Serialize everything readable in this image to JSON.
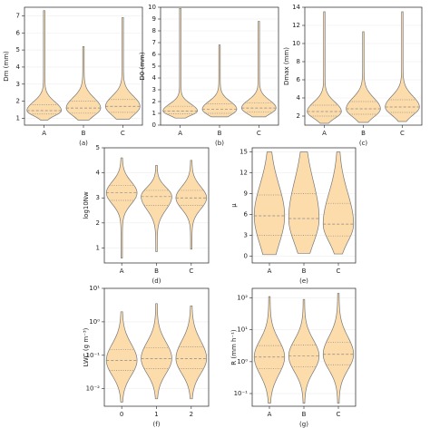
{
  "chart_data": [
    {
      "type": "violin",
      "label": "(a)",
      "ylabel": "Dm (mm)",
      "categories": [
        "A",
        "B",
        "C"
      ],
      "ylim": [
        0.6,
        7.5
      ],
      "yticks": [
        1,
        2,
        3,
        4,
        5,
        6,
        7
      ],
      "log": false,
      "grid": true,
      "color": "#fddcab",
      "violins": [
        {
          "min": 0.9,
          "q1": 1.25,
          "median": 1.45,
          "q3": 1.8,
          "max": 7.3
        },
        {
          "min": 0.9,
          "q1": 1.3,
          "median": 1.6,
          "q3": 2.0,
          "max": 5.2
        },
        {
          "min": 0.95,
          "q1": 1.35,
          "median": 1.7,
          "q3": 2.1,
          "max": 6.9
        }
      ]
    },
    {
      "type": "violin",
      "label": "(b)",
      "ylabel": "D0 (mm)",
      "categories": [
        "A",
        "B",
        "C"
      ],
      "ylim": [
        0,
        10
      ],
      "yticks": [
        0,
        1,
        2,
        3,
        4,
        5,
        6,
        7,
        8,
        9,
        10
      ],
      "log": false,
      "grid": true,
      "color": "#fddcab",
      "violins": [
        {
          "min": 0.6,
          "q1": 0.95,
          "median": 1.2,
          "q3": 1.6,
          "max": 9.9
        },
        {
          "min": 0.7,
          "q1": 1.0,
          "median": 1.35,
          "q3": 1.8,
          "max": 6.8
        },
        {
          "min": 0.7,
          "q1": 1.1,
          "median": 1.45,
          "q3": 1.9,
          "max": 8.8
        }
      ]
    },
    {
      "type": "violin",
      "label": "(c)",
      "ylabel": "Dmax (mm)",
      "categories": [
        "A",
        "B",
        "C"
      ],
      "ylim": [
        1,
        14
      ],
      "yticks": [
        2,
        4,
        6,
        8,
        10,
        12,
        14
      ],
      "log": false,
      "grid": true,
      "color": "#fddcab",
      "violins": [
        {
          "min": 1.2,
          "q1": 2.0,
          "median": 2.5,
          "q3": 3.2,
          "max": 13.5
        },
        {
          "min": 1.3,
          "q1": 2.2,
          "median": 2.8,
          "q3": 3.6,
          "max": 11.3
        },
        {
          "min": 1.4,
          "q1": 2.4,
          "median": 3.0,
          "q3": 3.8,
          "max": 13.5
        }
      ]
    },
    {
      "type": "violin",
      "label": "(d)",
      "ylabel": "log10Nw",
      "categories": [
        "A",
        "B",
        "C"
      ],
      "ylim": [
        0.4,
        5
      ],
      "yticks": [
        1,
        2,
        3,
        4,
        5
      ],
      "log": false,
      "grid": true,
      "color": "#fddcab",
      "violins": [
        {
          "min": 0.6,
          "q1": 2.9,
          "median": 3.2,
          "q3": 3.5,
          "max": 4.6
        },
        {
          "min": 0.85,
          "q1": 2.7,
          "median": 3.05,
          "q3": 3.3,
          "max": 4.3
        },
        {
          "min": 0.95,
          "q1": 2.7,
          "median": 3.0,
          "q3": 3.3,
          "max": 4.5
        }
      ]
    },
    {
      "type": "violin",
      "label": "(e)",
      "ylabel": "μ",
      "categories": [
        "A",
        "B",
        "C"
      ],
      "ylim": [
        -1,
        15.6
      ],
      "yticks": [
        0,
        3,
        6,
        9,
        12,
        15
      ],
      "log": false,
      "grid": true,
      "color": "#fddcab",
      "violins": [
        {
          "min": 0.2,
          "q1": 3.0,
          "median": 5.8,
          "q3": 8.8,
          "max": 15
        },
        {
          "min": 0.4,
          "q1": 3.0,
          "median": 5.4,
          "q3": 9.0,
          "max": 15
        },
        {
          "min": 0.3,
          "q1": 2.9,
          "median": 4.6,
          "q3": 7.6,
          "max": 15
        }
      ]
    },
    {
      "type": "violin",
      "label": "(f)",
      "ylabel": "LWC (g m⁻³)",
      "categories": [
        "0",
        "1",
        "2"
      ],
      "ylim": [
        0.003,
        10
      ],
      "yticks": [
        {
          "value": 0.01,
          "label": "10⁻²"
        },
        {
          "value": 0.1,
          "label": "10⁻¹"
        },
        {
          "value": 1,
          "label": "10⁰"
        },
        {
          "value": 10,
          "label": "10¹"
        }
      ],
      "log": true,
      "grid": true,
      "color": "#fddcab",
      "violins": [
        {
          "min": 0.004,
          "q1": 0.035,
          "median": 0.07,
          "q3": 0.15,
          "max": 2
        },
        {
          "min": 0.005,
          "q1": 0.04,
          "median": 0.08,
          "q3": 0.17,
          "max": 3.5
        },
        {
          "min": 0.005,
          "q1": 0.04,
          "median": 0.08,
          "q3": 0.18,
          "max": 3
        }
      ]
    },
    {
      "type": "violin",
      "label": "(g)",
      "ylabel": "R (mm h⁻¹)",
      "categories": [
        "A",
        "B",
        "C"
      ],
      "ylim": [
        0.04,
        200
      ],
      "yticks": [
        {
          "value": 0.1,
          "label": "10⁻¹"
        },
        {
          "value": 1,
          "label": "10⁰"
        },
        {
          "value": 10,
          "label": "10¹"
        },
        {
          "value": 100,
          "label": "10²"
        }
      ],
      "log": true,
      "grid": true,
      "color": "#fddcab",
      "violins": [
        {
          "min": 0.05,
          "q1": 0.6,
          "median": 1.4,
          "q3": 3.2,
          "max": 110
        },
        {
          "min": 0.05,
          "q1": 0.7,
          "median": 1.5,
          "q3": 3.3,
          "max": 90
        },
        {
          "min": 0.05,
          "q1": 0.8,
          "median": 1.7,
          "q3": 4,
          "max": 140
        }
      ]
    }
  ]
}
